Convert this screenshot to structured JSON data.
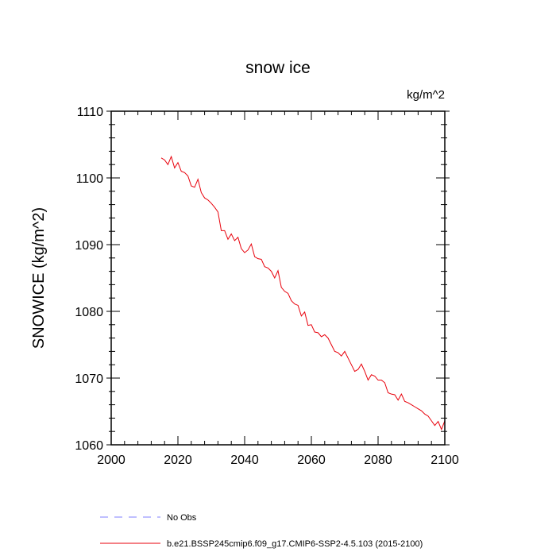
{
  "chart_data": {
    "type": "line",
    "title": "snow ice",
    "units_label": "kg/m^2",
    "xlabel": "",
    "ylabel": "SNOWICE  (kg/m^2)",
    "xlim": [
      2000,
      2100
    ],
    "ylim": [
      1060,
      1110
    ],
    "x_ticks": [
      2000,
      2020,
      2040,
      2060,
      2080,
      2100
    ],
    "y_ticks": [
      1060,
      1070,
      1080,
      1090,
      1100,
      1110
    ],
    "x_tick_labels": [
      "2000",
      "2020",
      "2040",
      "2060",
      "2080",
      "2100"
    ],
    "y_tick_labels": [
      "1060",
      "1070",
      "1080",
      "1090",
      "1100",
      "1110"
    ],
    "series": [
      {
        "name": "b.e21.BSSP245cmip6.f09_g17.CMIP6-SSP2-4.5.103 (2015-2100)",
        "color": "#e8000b",
        "dash": "solid",
        "x": [
          2015,
          2016,
          2017,
          2018,
          2019,
          2020,
          2021,
          2022,
          2023,
          2024,
          2025,
          2026,
          2027,
          2028,
          2029,
          2030,
          2031,
          2032,
          2033,
          2034,
          2035,
          2036,
          2037,
          2038,
          2039,
          2040,
          2041,
          2042,
          2043,
          2044,
          2045,
          2046,
          2047,
          2048,
          2049,
          2050,
          2051,
          2052,
          2053,
          2054,
          2055,
          2056,
          2057,
          2058,
          2059,
          2060,
          2061,
          2062,
          2063,
          2064,
          2065,
          2066,
          2067,
          2068,
          2069,
          2070,
          2071,
          2072,
          2073,
          2074,
          2075,
          2076,
          2077,
          2078,
          2079,
          2080,
          2081,
          2082,
          2083,
          2084,
          2085,
          2086,
          2087,
          2088,
          2089,
          2090,
          2091,
          2092,
          2093,
          2094,
          2095,
          2096,
          2097,
          2098,
          2099,
          2100
        ],
        "values": [
          1103.0,
          1102.7,
          1102.0,
          1103.2,
          1101.5,
          1102.3,
          1101.0,
          1100.8,
          1100.3,
          1098.8,
          1098.6,
          1099.8,
          1097.8,
          1097.0,
          1096.7,
          1096.2,
          1095.6,
          1094.9,
          1092.1,
          1092.1,
          1090.8,
          1091.6,
          1090.6,
          1091.1,
          1089.4,
          1088.8,
          1089.2,
          1090.1,
          1088.2,
          1087.9,
          1087.8,
          1086.7,
          1086.5,
          1086.0,
          1085.0,
          1086.1,
          1083.6,
          1083.0,
          1082.7,
          1081.6,
          1081.1,
          1080.9,
          1079.3,
          1079.9,
          1077.9,
          1078.0,
          1076.9,
          1076.8,
          1076.2,
          1076.5,
          1076.0,
          1075.0,
          1074.0,
          1073.8,
          1073.3,
          1074.0,
          1073.0,
          1072.0,
          1071.0,
          1071.3,
          1072.1,
          1071.0,
          1069.7,
          1070.5,
          1070.3,
          1069.7,
          1069.7,
          1069.3,
          1067.8,
          1067.6,
          1067.5,
          1066.7,
          1067.6,
          1066.5,
          1066.3,
          1066.0,
          1065.7,
          1065.4,
          1065.1,
          1064.6,
          1064.3,
          1063.6,
          1062.9,
          1063.5,
          1062.3,
          1063.6
        ]
      }
    ],
    "legend": [
      {
        "label": "No Obs",
        "color": "#7f7fff",
        "dash": "dashed"
      },
      {
        "label": "b.e21.BSSP245cmip6.f09_g17.CMIP6-SSP2-4.5.103 (2015-2100)",
        "color": "#e8000b",
        "dash": "solid"
      }
    ],
    "legend_position": "bottom-left"
  }
}
